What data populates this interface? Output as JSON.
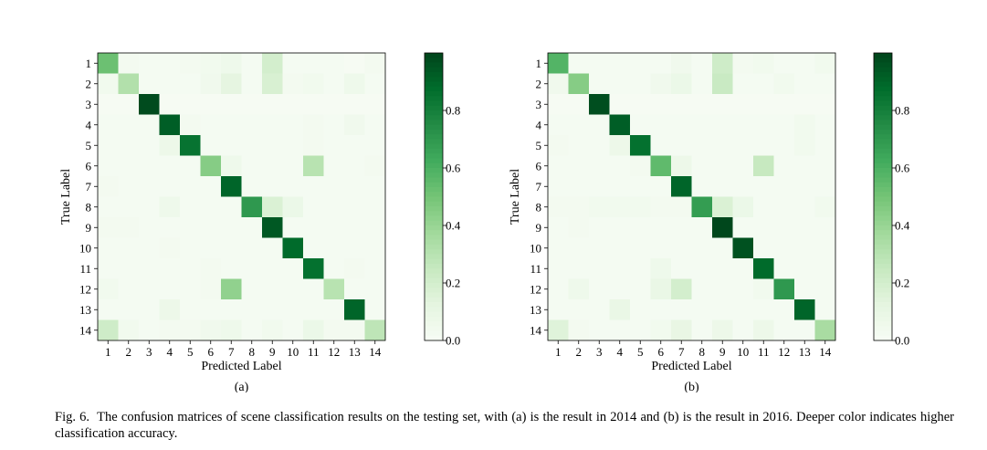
{
  "caption": {
    "label": "Fig. 6.",
    "text": "The confusion matrices of scene classification results on the testing set, with (a) is the result in 2014 and (b) is the result in 2016. Deeper color indicates higher classification accuracy."
  },
  "colormap": {
    "name": "Greens",
    "low": "#f7fcf5",
    "high": "#00441b"
  },
  "chart_data": [
    {
      "type": "heatmap",
      "subfigure_label": "(a)",
      "xlabel": "Predicted Label",
      "ylabel": "True Label",
      "x_ticks": [
        "1",
        "2",
        "3",
        "4",
        "5",
        "6",
        "7",
        "8",
        "9",
        "10",
        "11",
        "12",
        "13",
        "14"
      ],
      "y_ticks": [
        "1",
        "2",
        "3",
        "4",
        "5",
        "6",
        "7",
        "8",
        "9",
        "10",
        "11",
        "12",
        "13",
        "14"
      ],
      "colorbar": {
        "range": [
          0.0,
          1.0
        ],
        "ticks": [
          0.0,
          0.2,
          0.4,
          0.6,
          0.8
        ],
        "tick_labels": [
          "0.0",
          "0.2",
          "0.4",
          "0.6",
          "0.8"
        ]
      },
      "matrix": [
        [
          0.52,
          0.03,
          0.02,
          0.02,
          0.03,
          0.04,
          0.06,
          0.02,
          0.2,
          0.02,
          0.02,
          0.02,
          0.01,
          0.03
        ],
        [
          0.04,
          0.32,
          0.02,
          0.02,
          0.02,
          0.05,
          0.12,
          0.02,
          0.18,
          0.03,
          0.04,
          0.02,
          0.06,
          0.02
        ],
        [
          0.01,
          0.01,
          0.98,
          0.01,
          0.01,
          0.01,
          0.01,
          0.01,
          0.01,
          0.01,
          0.01,
          0.01,
          0.01,
          0.01
        ],
        [
          0.02,
          0.02,
          0.02,
          0.92,
          0.03,
          0.02,
          0.02,
          0.02,
          0.02,
          0.02,
          0.03,
          0.02,
          0.05,
          0.02
        ],
        [
          0.02,
          0.02,
          0.02,
          0.07,
          0.85,
          0.02,
          0.02,
          0.02,
          0.02,
          0.02,
          0.03,
          0.02,
          0.02,
          0.02
        ],
        [
          0.02,
          0.02,
          0.02,
          0.02,
          0.02,
          0.45,
          0.06,
          0.02,
          0.02,
          0.02,
          0.3,
          0.02,
          0.02,
          0.03
        ],
        [
          0.03,
          0.02,
          0.02,
          0.02,
          0.02,
          0.02,
          0.9,
          0.02,
          0.02,
          0.02,
          0.02,
          0.02,
          0.02,
          0.02
        ],
        [
          0.02,
          0.02,
          0.02,
          0.06,
          0.02,
          0.02,
          0.02,
          0.7,
          0.17,
          0.08,
          0.02,
          0.02,
          0.02,
          0.02
        ],
        [
          0.03,
          0.03,
          0.02,
          0.02,
          0.02,
          0.02,
          0.02,
          0.02,
          0.94,
          0.02,
          0.02,
          0.02,
          0.02,
          0.02
        ],
        [
          0.02,
          0.02,
          0.02,
          0.03,
          0.02,
          0.02,
          0.02,
          0.02,
          0.02,
          0.88,
          0.02,
          0.02,
          0.02,
          0.02
        ],
        [
          0.02,
          0.02,
          0.02,
          0.02,
          0.02,
          0.03,
          0.02,
          0.02,
          0.02,
          0.02,
          0.86,
          0.02,
          0.03,
          0.02
        ],
        [
          0.04,
          0.02,
          0.02,
          0.02,
          0.02,
          0.03,
          0.42,
          0.02,
          0.02,
          0.02,
          0.02,
          0.3,
          0.02,
          0.02
        ],
        [
          0.02,
          0.02,
          0.02,
          0.07,
          0.02,
          0.02,
          0.02,
          0.02,
          0.02,
          0.02,
          0.02,
          0.02,
          0.9,
          0.02
        ],
        [
          0.22,
          0.04,
          0.02,
          0.03,
          0.03,
          0.05,
          0.06,
          0.02,
          0.04,
          0.02,
          0.08,
          0.03,
          0.03,
          0.28
        ]
      ]
    },
    {
      "type": "heatmap",
      "subfigure_label": "(b)",
      "xlabel": "Predicted Label",
      "ylabel": "True Label",
      "x_ticks": [
        "1",
        "2",
        "3",
        "4",
        "5",
        "6",
        "7",
        "8",
        "9",
        "10",
        "11",
        "12",
        "13",
        "14"
      ],
      "y_ticks": [
        "1",
        "2",
        "3",
        "4",
        "5",
        "6",
        "7",
        "8",
        "9",
        "10",
        "11",
        "12",
        "13",
        "14"
      ],
      "colorbar": {
        "range": [
          0.0,
          1.0
        ],
        "ticks": [
          0.0,
          0.2,
          0.4,
          0.6,
          0.8
        ],
        "tick_labels": [
          "0.0",
          "0.2",
          "0.4",
          "0.6",
          "0.8"
        ]
      },
      "matrix": [
        [
          0.58,
          0.02,
          0.02,
          0.02,
          0.02,
          0.02,
          0.05,
          0.02,
          0.22,
          0.03,
          0.04,
          0.02,
          0.02,
          0.04
        ],
        [
          0.05,
          0.45,
          0.02,
          0.02,
          0.02,
          0.05,
          0.08,
          0.02,
          0.24,
          0.02,
          0.02,
          0.04,
          0.02,
          0.02
        ],
        [
          0.01,
          0.01,
          0.97,
          0.01,
          0.01,
          0.01,
          0.01,
          0.01,
          0.01,
          0.01,
          0.01,
          0.01,
          0.01,
          0.01
        ],
        [
          0.02,
          0.02,
          0.02,
          0.92,
          0.02,
          0.02,
          0.02,
          0.02,
          0.02,
          0.02,
          0.02,
          0.02,
          0.04,
          0.02
        ],
        [
          0.03,
          0.02,
          0.02,
          0.07,
          0.86,
          0.02,
          0.02,
          0.02,
          0.02,
          0.02,
          0.02,
          0.02,
          0.04,
          0.02
        ],
        [
          0.02,
          0.02,
          0.02,
          0.02,
          0.03,
          0.55,
          0.07,
          0.02,
          0.02,
          0.02,
          0.25,
          0.02,
          0.02,
          0.02
        ],
        [
          0.02,
          0.02,
          0.02,
          0.02,
          0.02,
          0.02,
          0.9,
          0.02,
          0.02,
          0.02,
          0.02,
          0.02,
          0.02,
          0.02
        ],
        [
          0.03,
          0.03,
          0.04,
          0.04,
          0.04,
          0.03,
          0.03,
          0.68,
          0.17,
          0.08,
          0.02,
          0.02,
          0.02,
          0.04
        ],
        [
          0.02,
          0.03,
          0.02,
          0.02,
          0.02,
          0.02,
          0.02,
          0.02,
          0.99,
          0.02,
          0.02,
          0.02,
          0.02,
          0.02
        ],
        [
          0.02,
          0.02,
          0.02,
          0.02,
          0.02,
          0.02,
          0.02,
          0.02,
          0.02,
          0.96,
          0.02,
          0.02,
          0.02,
          0.02
        ],
        [
          0.02,
          0.02,
          0.02,
          0.02,
          0.02,
          0.06,
          0.02,
          0.02,
          0.02,
          0.02,
          0.88,
          0.02,
          0.02,
          0.02
        ],
        [
          0.02,
          0.06,
          0.02,
          0.02,
          0.02,
          0.09,
          0.2,
          0.02,
          0.02,
          0.02,
          0.04,
          0.7,
          0.02,
          0.02
        ],
        [
          0.02,
          0.02,
          0.02,
          0.09,
          0.02,
          0.02,
          0.02,
          0.02,
          0.02,
          0.02,
          0.02,
          0.02,
          0.9,
          0.02
        ],
        [
          0.15,
          0.03,
          0.02,
          0.02,
          0.02,
          0.04,
          0.1,
          0.02,
          0.07,
          0.02,
          0.07,
          0.02,
          0.02,
          0.35
        ]
      ]
    }
  ]
}
